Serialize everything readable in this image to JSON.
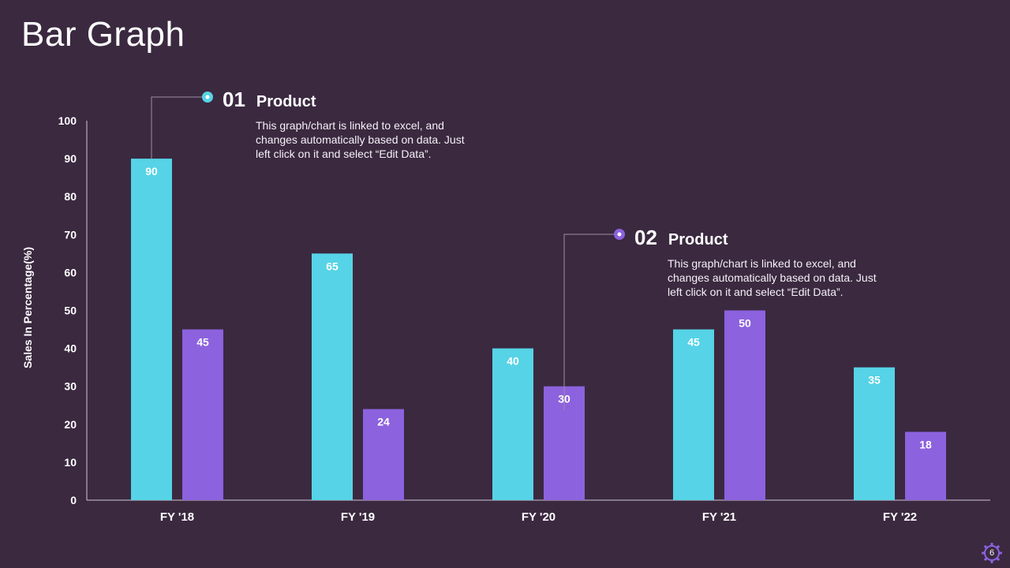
{
  "slide": {
    "title": "Bar Graph",
    "page_number": "6"
  },
  "colors": {
    "background": "#3b2940",
    "series1": "#56d3e6",
    "series2": "#8c62de",
    "axis": "#cfc7d6",
    "text": "#ffffff"
  },
  "callouts": [
    {
      "number": "01",
      "title": "Product",
      "text": "This graph/chart is linked to excel, and changes automatically based on data. Just left click on it and select “Edit Data”.",
      "dot_color": "#56d3e6"
    },
    {
      "number": "02",
      "title": "Product",
      "text": "This graph/chart is linked to excel, and changes automatically based on data. Just left click on it and select “Edit Data”.",
      "dot_color": "#8c62de"
    }
  ],
  "chart_data": {
    "type": "bar",
    "title": "",
    "xlabel": "",
    "ylabel": "Sales In Percentage(%)",
    "categories": [
      "FY '18",
      "FY '19",
      "FY '20",
      "FY '21",
      "FY '22"
    ],
    "series": [
      {
        "name": "Product 01",
        "values": [
          90,
          65,
          40,
          45,
          35
        ]
      },
      {
        "name": "Product 02",
        "values": [
          45,
          24,
          30,
          50,
          18
        ]
      }
    ],
    "ylim": [
      0,
      100
    ],
    "yticks": [
      0,
      10,
      20,
      30,
      40,
      50,
      60,
      70,
      80,
      90,
      100
    ],
    "grid": false,
    "legend": "none",
    "data_labels": true
  }
}
